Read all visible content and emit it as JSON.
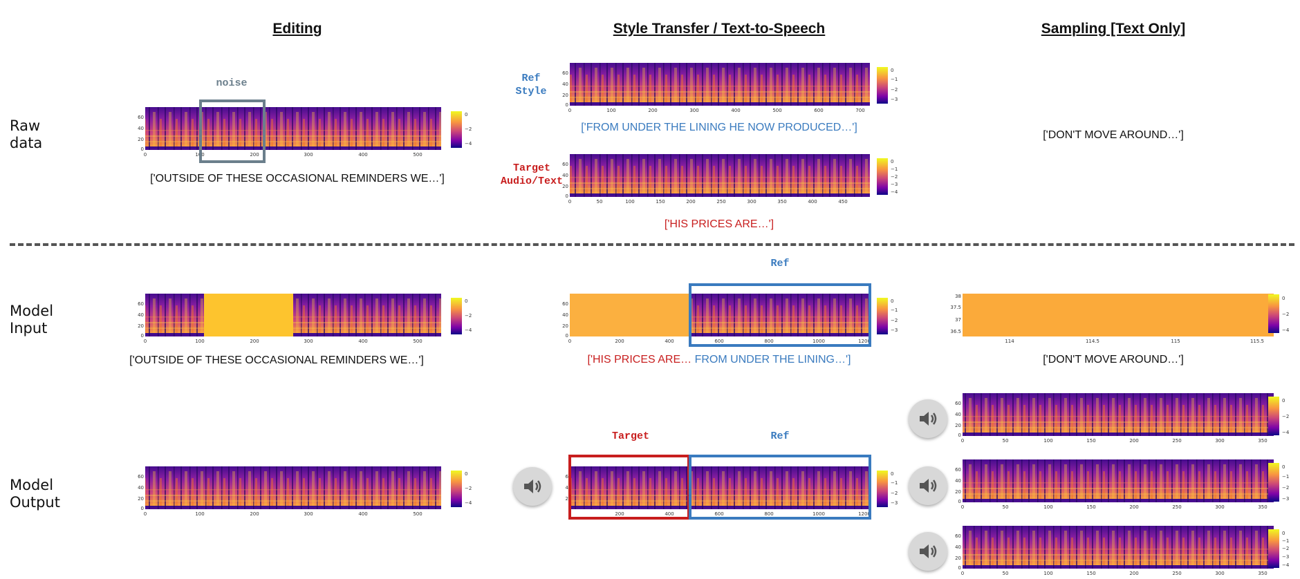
{
  "headers": {
    "editing": "Editing",
    "style_transfer": "Style Transfer / Text-to-Speech",
    "sampling": "Sampling [Text Only]"
  },
  "row_labels": {
    "raw_line1": "Raw",
    "raw_line2": "data",
    "input_line1": "Model",
    "input_line2": "Input",
    "output_line1": "Model",
    "output_line2": "Output"
  },
  "labels": {
    "noise": "noise",
    "ref_style_line1": "Ref",
    "ref_style_line2": "Style",
    "target_line1": "Target",
    "target_line2": "Audio/Text",
    "ref": "Ref",
    "target": "Target"
  },
  "captions": {
    "editing_raw": "['OUTSIDE OF THESE OCCASIONAL REMINDERS WE…']",
    "style_ref": "['FROM UNDER THE LINING HE NOW PRODUCED…']",
    "style_target": "['HIS PRICES ARE…']",
    "sampling_raw": "['DON'T MOVE AROUND…']",
    "editing_input": "['OUTSIDE OF THESE OCCASIONAL REMINDERS WE…']",
    "style_input_red": "['HIS PRICES ARE…",
    "style_input_blue": " FROM UNDER THE LINING…']",
    "sampling_input": "['DON'T MOVE AROUND…']"
  },
  "axes": {
    "y_60_20": [
      "60",
      "40",
      "20",
      "0"
    ],
    "x_500": [
      "0",
      "100",
      "200",
      "300",
      "400",
      "500"
    ],
    "x_700": [
      "0",
      "100",
      "200",
      "300",
      "400",
      "500",
      "600",
      "700"
    ],
    "x_450": [
      "0",
      "50",
      "100",
      "150",
      "200",
      "250",
      "300",
      "350",
      "400",
      "450"
    ],
    "x_1200": [
      "0",
      "200",
      "400",
      "600",
      "800",
      "1000",
      "1200"
    ],
    "x_350": [
      "0",
      "50",
      "100",
      "150",
      "200",
      "250",
      "300",
      "350"
    ],
    "sampling_input_y": [
      "38",
      "37.5",
      "37",
      "36.5"
    ],
    "sampling_input_x": [
      "114",
      "114.5",
      "115",
      "115.5"
    ],
    "colorbar_4": [
      "0",
      "−2",
      "−4"
    ],
    "colorbar_3": [
      "0",
      "−1",
      "−2",
      "−3"
    ],
    "colorbar_4b": [
      "0",
      "−1",
      "−2",
      "−3",
      "−4"
    ]
  },
  "colors": {
    "noise_box": "#6b7f8c",
    "ref_blue": "#3a7bbf",
    "target_red": "#c81e1e",
    "fill_orange": "#fbb040"
  },
  "icons": {
    "speaker": "speaker-volume-icon"
  }
}
